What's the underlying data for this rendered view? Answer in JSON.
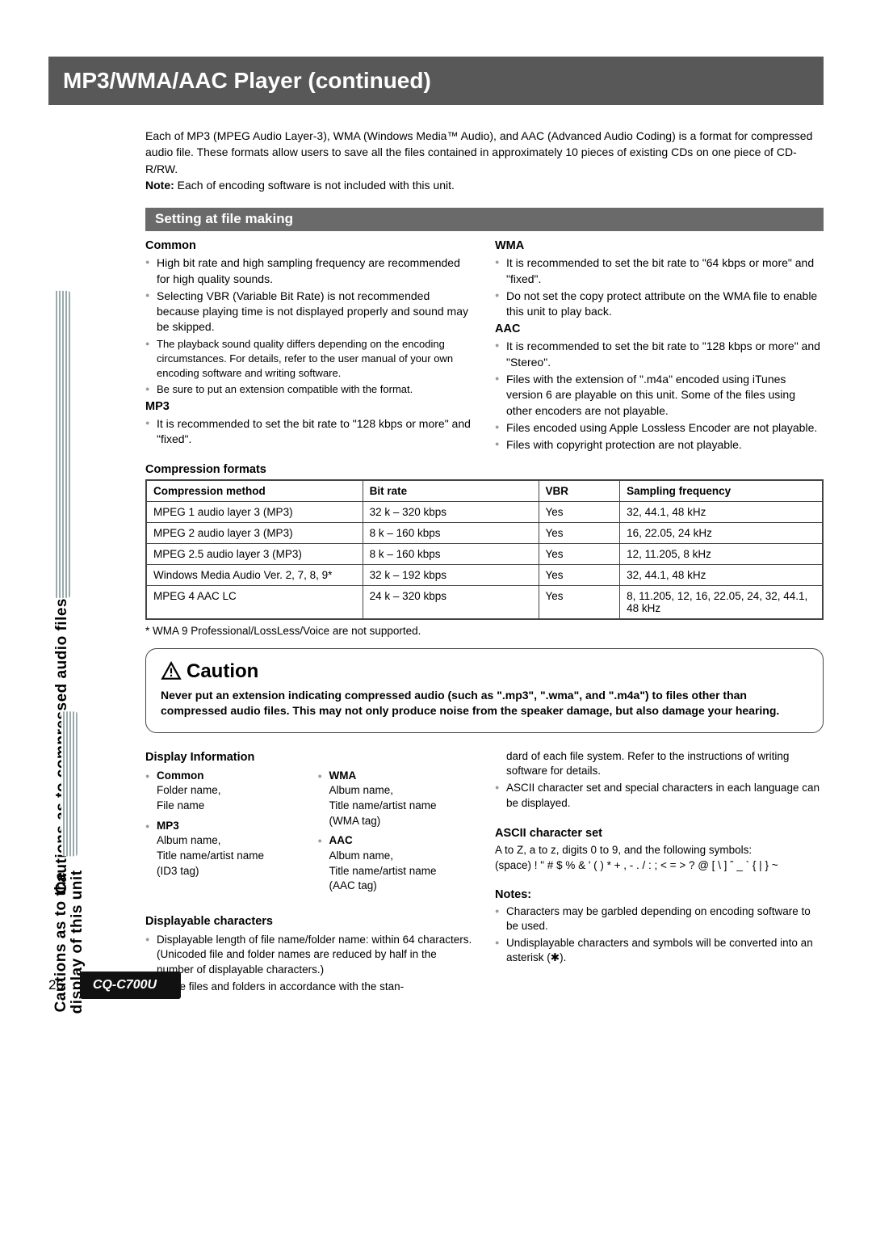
{
  "page_number": "26",
  "model": "CQ-C700U",
  "title": "MP3/WMA/AAC Player (continued)",
  "side_tabs": {
    "tab1": "Cautions as to compressed audio files",
    "tab2": "Cautions as to the display of this unit"
  },
  "intro": {
    "body": "Each of MP3 (MPEG Audio Layer-3), WMA (Windows Media™ Audio), and AAC (Advanced Audio Coding) is a format for compressed audio file. These formats allow users to save all the files contained in approximately 10 pieces of existing CDs on one piece of CD-R/RW.",
    "note_label": "Note:",
    "note_text": "Each of encoding software is not included with this unit."
  },
  "setting_header": "Setting at file making",
  "left": {
    "common_h": "Common",
    "common_items": [
      "High bit rate and high sampling frequency are recommended for high quality sounds.",
      "Selecting VBR (Variable Bit Rate) is not recommended because playing time is not displayed properly and sound may be skipped.",
      "The playback sound quality differs depending on the encoding circumstances. For details, refer to the user manual of your own encoding software and writing software.",
      "Be sure to put an extension compatible with the format."
    ],
    "mp3_h": "MP3",
    "mp3_items": [
      "It is recommended to set the bit rate to \"128 kbps or more\" and \"fixed\"."
    ]
  },
  "right": {
    "wma_h": "WMA",
    "wma_items": [
      "It is recommended to set the bit rate to \"64 kbps or more\" and \"fixed\".",
      "Do not set the copy protect attribute on the WMA file to enable this unit to play back."
    ],
    "aac_h": "AAC",
    "aac_items": [
      "It is recommended to set the bit rate to \"128 kbps or more\" and \"Stereo\".",
      "Files with the extension of \".m4a\" encoded using iTunes version 6 are playable on this unit. Some of the files using other encoders are not playable.",
      "Files encoded using Apple Lossless Encoder are not playable.",
      "Files with copyright protection are not playable."
    ]
  },
  "formats": {
    "title": "Compression formats",
    "columns": [
      "Compression method",
      "Bit rate",
      "VBR",
      "Sampling frequency"
    ],
    "rows": [
      [
        "MPEG 1 audio layer 3 (MP3)",
        "32 k – 320 kbps",
        "Yes",
        "32, 44.1, 48 kHz"
      ],
      [
        "MPEG 2 audio layer 3 (MP3)",
        "8 k – 160 kbps",
        "Yes",
        "16, 22.05, 24 kHz"
      ],
      [
        "MPEG 2.5  audio layer 3 (MP3)",
        "8 k – 160 kbps",
        "Yes",
        "12, 11.205, 8 kHz"
      ],
      [
        "Windows Media Audio Ver. 2, 7, 8, 9*",
        "32 k – 192 kbps",
        "Yes",
        "32, 44.1, 48 kHz"
      ],
      [
        "MPEG 4 AAC LC",
        "24 k – 320 kbps",
        "Yes",
        "8, 11.205, 12, 16, 22.05, 24, 32, 44.1, 48 kHz"
      ]
    ],
    "footnote": "* WMA 9 Professional/LossLess/Voice are not supported."
  },
  "caution": {
    "heading": "Caution",
    "body": "Never put an extension indicating compressed audio (such as \".mp3\", \".wma\", and \".m4a\") to files other than compressed audio files. This may not only produce noise from the speaker damage, but also damage your hearing."
  },
  "display_info": {
    "title": "Display Information",
    "colA": [
      {
        "label": "Common",
        "lines": "Folder name,\nFile name"
      },
      {
        "label": "MP3",
        "lines": "Album name,\nTitle name/artist name\n(ID3 tag)"
      }
    ],
    "colB": [
      {
        "label": "WMA",
        "lines": "Album name,\nTitle name/artist name\n(WMA tag)"
      },
      {
        "label": "AAC",
        "lines": "Album name,\nTitle name/artist name\n(AAC tag)"
      }
    ]
  },
  "disp_chars": {
    "title": "Displayable characters",
    "items": [
      "Displayable length of file name/folder name: within 64 characters. (Unicoded file and folder names are reduced by half in the number of displayable characters.)",
      "Name files and folders in accordance with the stan-"
    ]
  },
  "right_lower": {
    "pre_items": [
      "dard of each file system. Refer to the instructions of writing software for details.",
      "ASCII character set and special characters in each language can be displayed."
    ],
    "ascii_title": "ASCII character set",
    "ascii_body": "A to Z, a to z, digits 0 to 9, and the following symbols:\n (space) ! \" # $ % & ' ( )  * + , - . / : ; < = > ? @ [ \\ ] ˆ _ ` { | } ~",
    "notes_title": "Notes:",
    "notes_items": [
      "Characters may be garbled depending on encoding software to be used.",
      "Undisplayable characters and symbols will be converted into an asterisk (✱)."
    ]
  }
}
